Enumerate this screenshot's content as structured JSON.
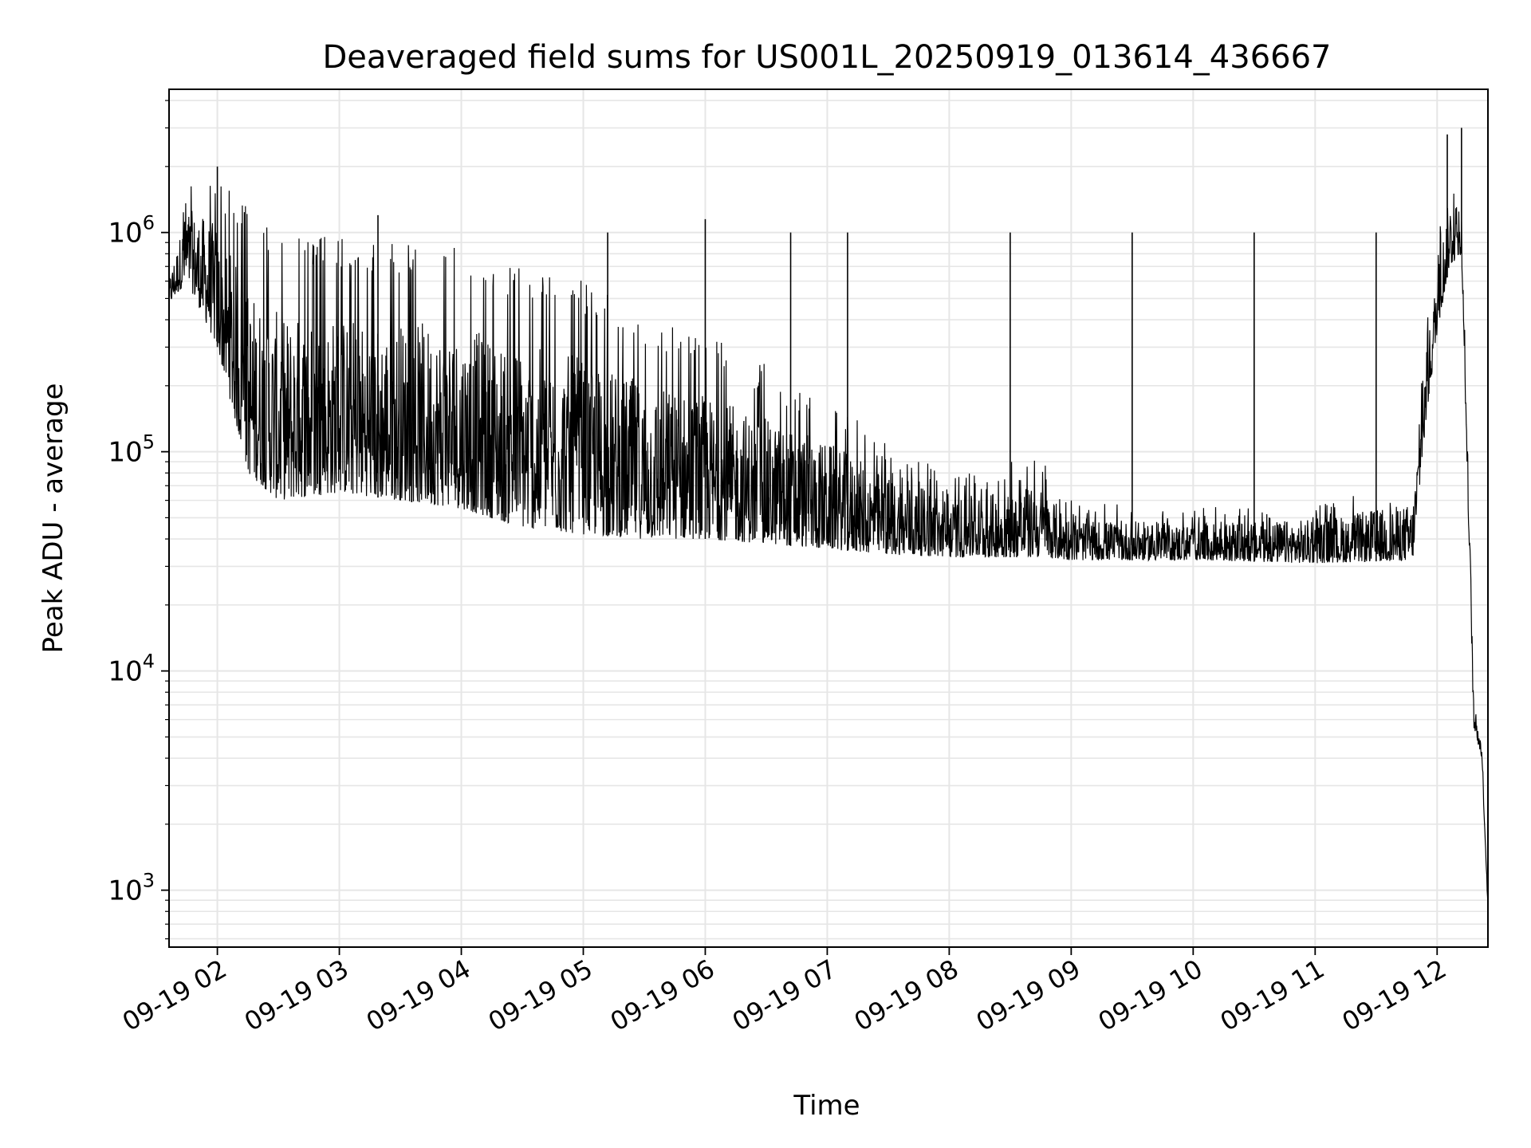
{
  "chart_data": {
    "type": "line",
    "title": "Deaveraged field sums for US001L_20250919_013614_436667",
    "xlabel": "Time",
    "ylabel": "Peak ADU - average",
    "x_range": [
      "2025-09-19 01:36:14",
      "2025-09-19 12:25:00"
    ],
    "xlim": [
      "2025-09-19 01:36:14",
      "2025-09-19 12:25:00"
    ],
    "x_ticks": [
      {
        "value": "2025-09-19 02:00",
        "label": "09-19 02"
      },
      {
        "value": "2025-09-19 03:00",
        "label": "09-19 03"
      },
      {
        "value": "2025-09-19 04:00",
        "label": "09-19 04"
      },
      {
        "value": "2025-09-19 05:00",
        "label": "09-19 05"
      },
      {
        "value": "2025-09-19 06:00",
        "label": "09-19 06"
      },
      {
        "value": "2025-09-19 07:00",
        "label": "09-19 07"
      },
      {
        "value": "2025-09-19 08:00",
        "label": "09-19 08"
      },
      {
        "value": "2025-09-19 09:00",
        "label": "09-19 09"
      },
      {
        "value": "2025-09-19 10:00",
        "label": "09-19 10"
      },
      {
        "value": "2025-09-19 11:00",
        "label": "09-19 11"
      },
      {
        "value": "2025-09-19 12:00",
        "label": "09-19 12"
      }
    ],
    "y_scale": "log",
    "ylim": [
      550,
      4500000
    ],
    "y_ticks": [
      {
        "value": 1000,
        "base": "10",
        "exp": "3"
      },
      {
        "value": 10000,
        "base": "10",
        "exp": "4"
      },
      {
        "value": 100000,
        "base": "10",
        "exp": "5"
      },
      {
        "value": 1000000,
        "base": "10",
        "exp": "6"
      }
    ],
    "grid": true,
    "line_color": "#000000",
    "envelope": [
      {
        "time": "2025-09-19 01:36:14",
        "low": 470000,
        "high": 700000
      },
      {
        "time": "2025-09-19 01:45",
        "low": 600000,
        "high": 1800000
      },
      {
        "time": "2025-09-19 02:00",
        "low": 300000,
        "high": 1900000
      },
      {
        "time": "2025-09-19 02:15",
        "low": 80000,
        "high": 1300000
      },
      {
        "time": "2025-09-19 02:30",
        "low": 60000,
        "high": 1000000
      },
      {
        "time": "2025-09-19 03:00",
        "low": 65000,
        "high": 950000
      },
      {
        "time": "2025-09-19 03:30",
        "low": 60000,
        "high": 900000
      },
      {
        "time": "2025-09-19 04:00",
        "low": 55000,
        "high": 850000
      },
      {
        "time": "2025-09-19 04:30",
        "low": 45000,
        "high": 700000
      },
      {
        "time": "2025-09-19 05:00",
        "low": 42000,
        "high": 600000
      },
      {
        "time": "2025-09-19 05:30",
        "low": 40000,
        "high": 420000
      },
      {
        "time": "2025-09-19 06:00",
        "low": 40000,
        "high": 350000
      },
      {
        "time": "2025-09-19 06:30",
        "low": 38000,
        "high": 250000
      },
      {
        "time": "2025-09-19 07:00",
        "low": 36000,
        "high": 180000
      },
      {
        "time": "2025-09-19 07:30",
        "low": 34000,
        "high": 110000
      },
      {
        "time": "2025-09-19 08:00",
        "low": 33000,
        "high": 80000
      },
      {
        "time": "2025-09-19 08:45",
        "low": 33000,
        "high": 95000
      },
      {
        "time": "2025-09-19 09:00",
        "low": 32000,
        "high": 60000
      },
      {
        "time": "2025-09-19 10:00",
        "low": 32000,
        "high": 55000
      },
      {
        "time": "2025-09-19 11:00",
        "low": 31000,
        "high": 60000
      },
      {
        "time": "2025-09-19 11:48",
        "low": 32000,
        "high": 75000
      },
      {
        "time": "2025-09-19 11:55",
        "low": 150000,
        "high": 400000
      },
      {
        "time": "2025-09-19 12:00",
        "low": 350000,
        "high": 900000
      },
      {
        "time": "2025-09-19 12:06",
        "low": 700000,
        "high": 2000000
      },
      {
        "time": "2025-09-19 12:12",
        "low": 800000,
        "high": 1200000
      },
      {
        "time": "2025-09-19 12:16",
        "low": 30000,
        "high": 60000
      },
      {
        "time": "2025-09-19 12:18",
        "low": 5500,
        "high": 8000
      },
      {
        "time": "2025-09-19 12:22",
        "low": 4000,
        "high": 5000
      },
      {
        "time": "2025-09-19 12:25",
        "low": 800,
        "high": 1000
      }
    ],
    "spikes": [
      {
        "time": "2025-09-19 02:00",
        "value": 2000000
      },
      {
        "time": "2025-09-19 03:19",
        "value": 1200000
      },
      {
        "time": "2025-09-19 05:12",
        "value": 1000000
      },
      {
        "time": "2025-09-19 06:00",
        "value": 1150000
      },
      {
        "time": "2025-09-19 06:42",
        "value": 1000000
      },
      {
        "time": "2025-09-19 07:10",
        "value": 1000000
      },
      {
        "time": "2025-09-19 08:30",
        "value": 1000000
      },
      {
        "time": "2025-09-19 09:30",
        "value": 1000000
      },
      {
        "time": "2025-09-19 10:30",
        "value": 1000000
      },
      {
        "time": "2025-09-19 11:30",
        "value": 1000000
      },
      {
        "time": "2025-09-19 12:05",
        "value": 2800000
      },
      {
        "time": "2025-09-19 12:12",
        "value": 3000000
      }
    ]
  }
}
